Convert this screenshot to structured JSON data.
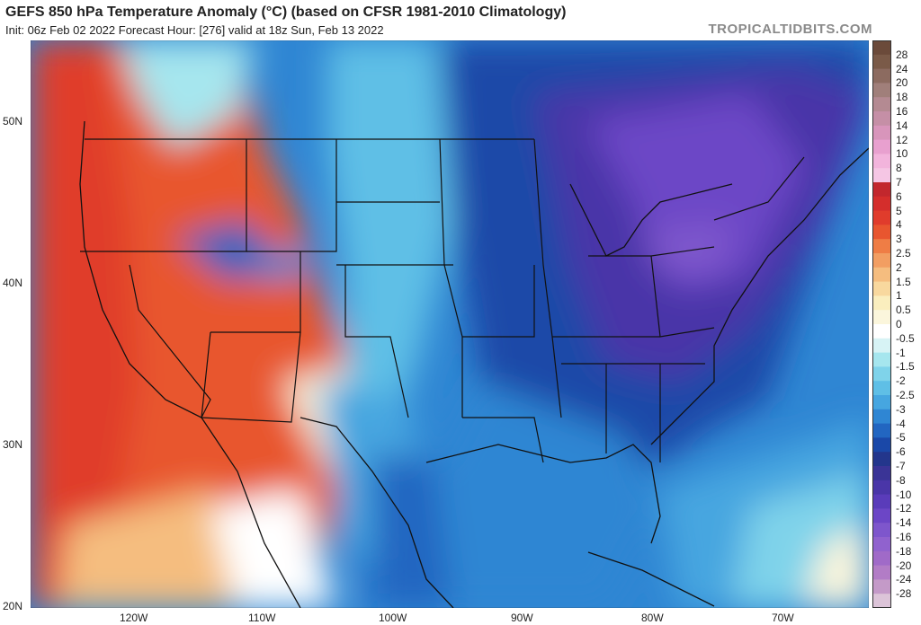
{
  "header": {
    "title": "GEFS 850 hPa Temperature Anomaly (°C) (based on CFSR 1981-2010 Climatology)",
    "subtitle": "Init: 06z Feb 02 2022   Forecast Hour: [276]   valid at 18z Sun, Feb 13 2022",
    "brand": "TROPICALTIDBITS.COM"
  },
  "map": {
    "lat_ticks": [
      "50N",
      "40N",
      "30N",
      "20N"
    ],
    "lon_ticks": [
      "120W",
      "110W",
      "100W",
      "90W",
      "80W",
      "70W"
    ]
  },
  "colorbar": {
    "labels": [
      "28",
      "24",
      "20",
      "18",
      "16",
      "14",
      "12",
      "10",
      "8",
      "7",
      "6",
      "5",
      "4",
      "3",
      "2.5",
      "2",
      "1.5",
      "1",
      "0.5",
      "0",
      "-0.5",
      "-1",
      "-1.5",
      "-2",
      "-2.5",
      "-3",
      "-4",
      "-5",
      "-6",
      "-7",
      "-8",
      "-10",
      "-12",
      "-14",
      "-16",
      "-18",
      "-20",
      "-24",
      "-28"
    ],
    "colors": [
      "#7a5a48",
      "#8c6b60",
      "#a07f7a",
      "#b48a92",
      "#c58fa6",
      "#d895bb",
      "#e8a0cf",
      "#f2b4dc",
      "#f5c6e4",
      "#c2272d",
      "#d42e2c",
      "#e03c2c",
      "#e8562f",
      "#ef7d45",
      "#f29e62",
      "#f5bd7f",
      "#f8d89e",
      "#faeebe",
      "#fbf6dc",
      "#ffffff",
      "#d7f3f5",
      "#a6e6ee",
      "#7fd3ea",
      "#5fbfe6",
      "#46a6e0",
      "#2f86d3",
      "#2266c1",
      "#1a48a8",
      "#23368c",
      "#3a3496",
      "#4a36a8",
      "#5a3cba",
      "#6c46c6",
      "#7e56cc",
      "#9062ce",
      "#a06ac8",
      "#b27cc6",
      "#c49ac8",
      "#dcc4d8"
    ]
  }
}
